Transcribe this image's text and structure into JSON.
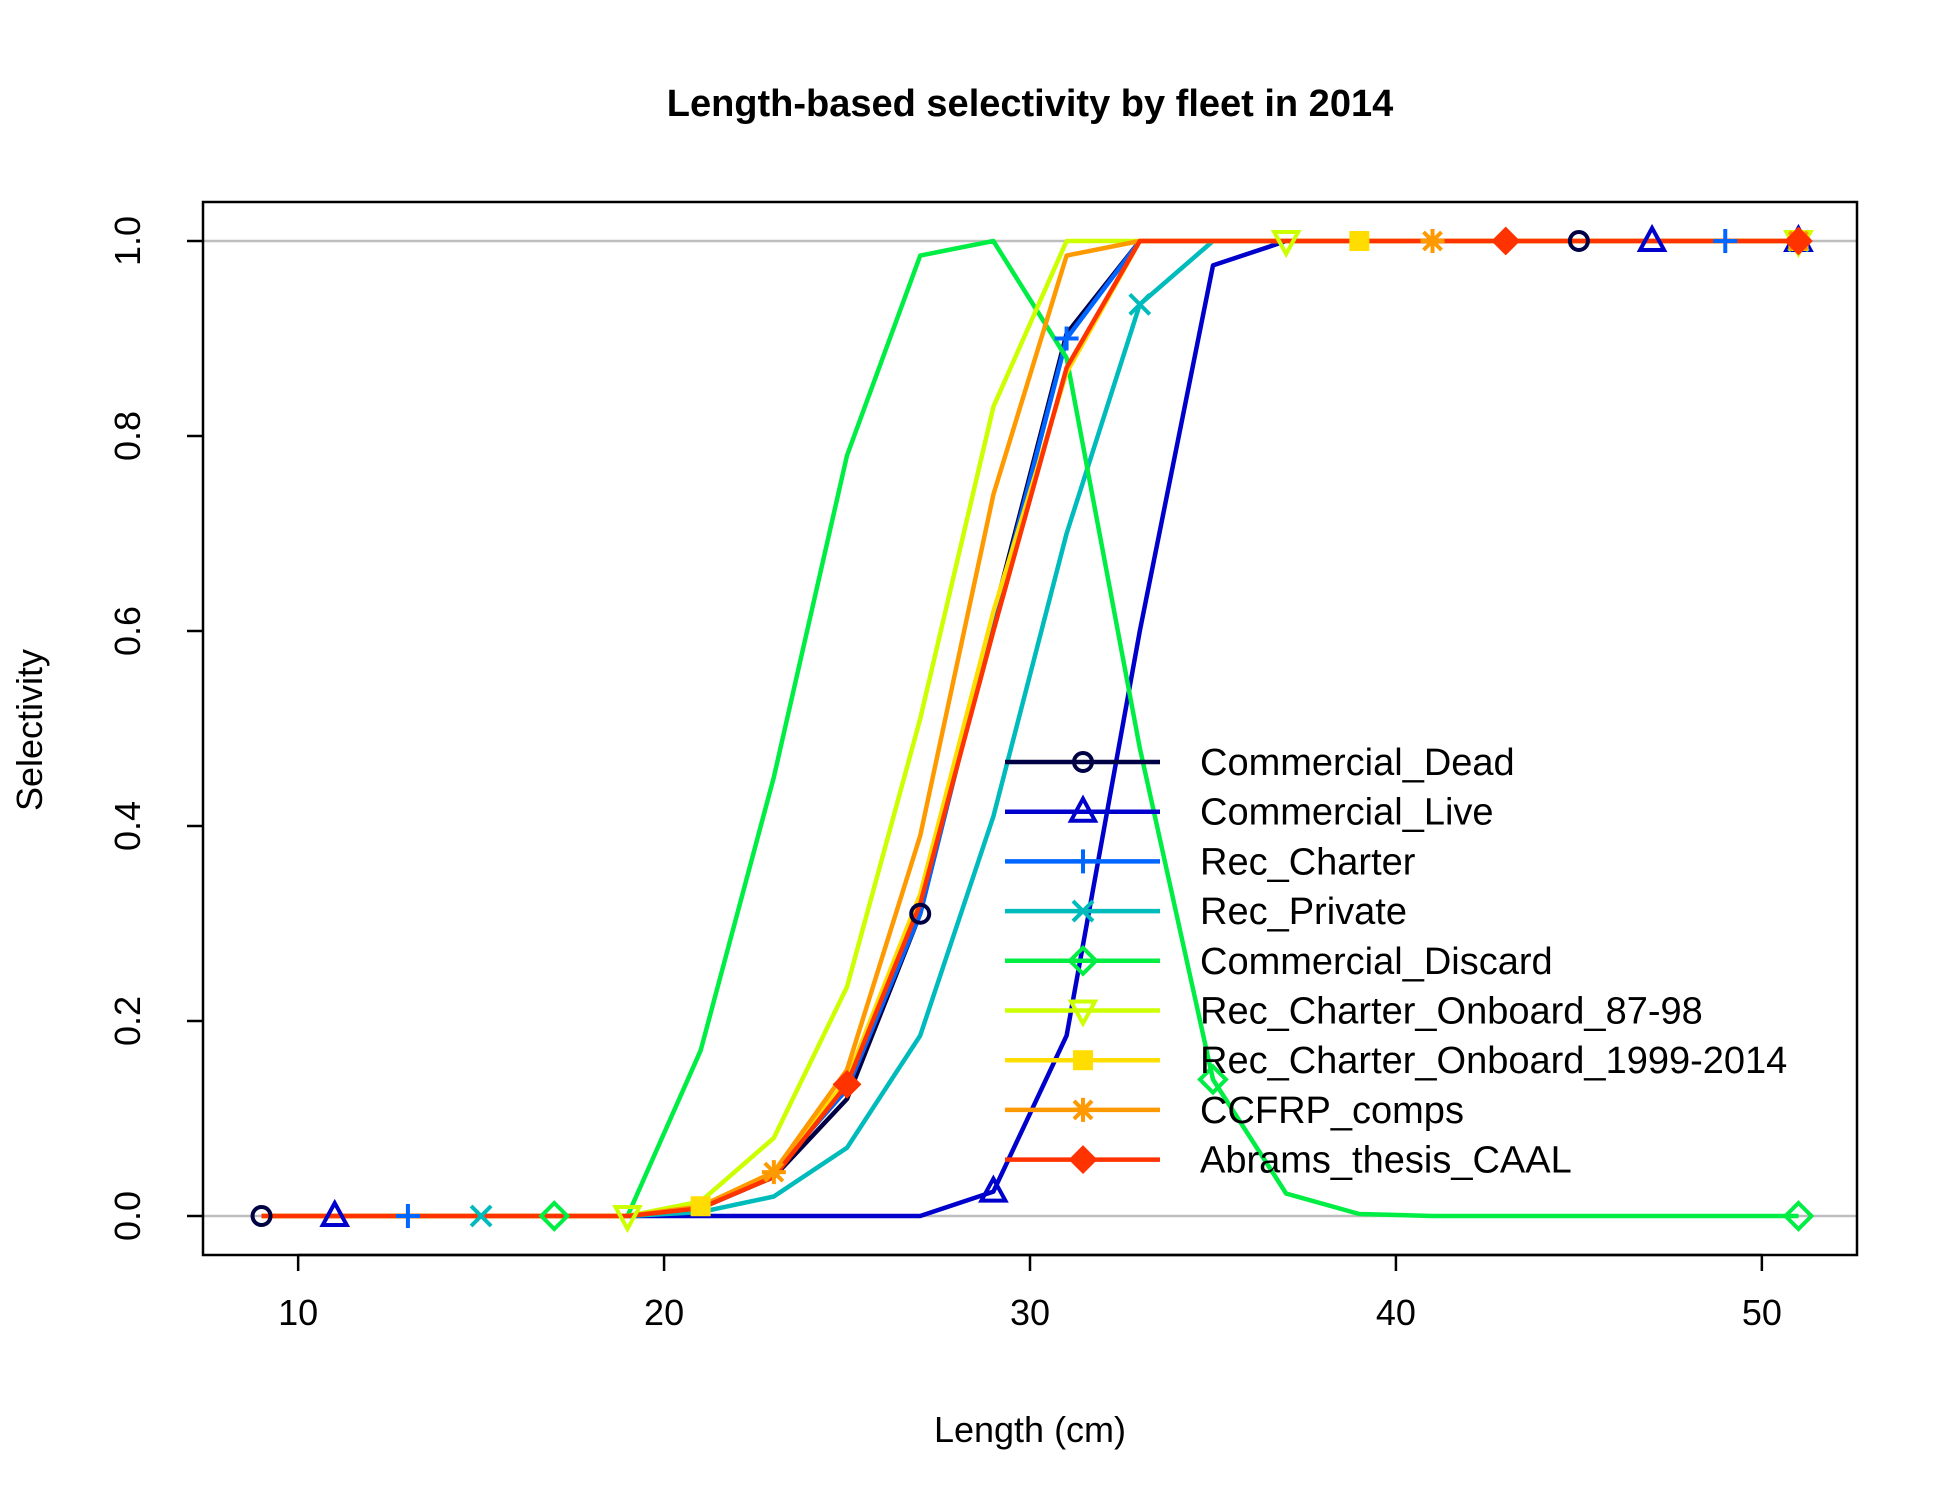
{
  "chart_data": {
    "type": "line",
    "title": "Length-based selectivity by fleet in 2014",
    "xlabel": "Length (cm)",
    "ylabel": "Selectivity",
    "xlim": [
      7.4,
      52.6
    ],
    "ylim": [
      -0.04,
      1.04
    ],
    "x_ticks": [
      10,
      20,
      30,
      40,
      50
    ],
    "x_tick_labels": [
      "10",
      "20",
      "30",
      "40",
      "50"
    ],
    "y_ticks": [
      0,
      0.2,
      0.4,
      0.6,
      0.8,
      1.0
    ],
    "y_tick_labels": [
      "0.0",
      "0.2",
      "0.4",
      "0.6",
      "0.8",
      "1.0"
    ],
    "reference_lines": [
      0,
      1
    ],
    "legend_position": "bottom-right",
    "x": [
      9,
      11,
      13,
      15,
      17,
      19,
      21,
      23,
      25,
      27,
      29,
      31,
      33,
      35,
      37,
      39,
      41,
      43,
      45,
      47,
      49,
      51
    ],
    "series": [
      {
        "name": "Commercial_Dead",
        "color": "#000044",
        "marker": "circle",
        "values": [
          0,
          0,
          0,
          0,
          0,
          0,
          0.008,
          0.04,
          0.12,
          0.31,
          0.615,
          0.905,
          1,
          1,
          1,
          1,
          1,
          1,
          1,
          1,
          1,
          1
        ]
      },
      {
        "name": "Commercial_Live",
        "color": "#0000CC",
        "marker": "triangle",
        "values": [
          0,
          0,
          0,
          0,
          0,
          0,
          0,
          0,
          0,
          0,
          0.025,
          0.185,
          0.6,
          0.975,
          1,
          1,
          1,
          1,
          1,
          1,
          1,
          1
        ]
      },
      {
        "name": "Rec_Charter",
        "color": "#0066FF",
        "marker": "plus",
        "values": [
          0,
          0,
          0,
          0,
          0,
          0,
          0.008,
          0.045,
          0.13,
          0.31,
          0.61,
          0.9,
          1,
          1,
          1,
          1,
          1,
          1,
          1,
          1,
          1,
          1
        ]
      },
      {
        "name": "Rec_Private",
        "color": "#00BBBB",
        "marker": "cross",
        "values": [
          0,
          0,
          0,
          0,
          0,
          0,
          0.004,
          0.02,
          0.07,
          0.185,
          0.41,
          0.7,
          0.935,
          1,
          1,
          1,
          1,
          1,
          1,
          1,
          1,
          1
        ]
      },
      {
        "name": "Commercial_Discard",
        "color": "#00EE44",
        "marker": "diamond",
        "values": [
          0,
          0,
          0,
          0,
          0,
          0,
          0.17,
          0.45,
          0.78,
          0.985,
          1,
          0.88,
          0.48,
          0.14,
          0.023,
          0.002,
          0,
          0,
          0,
          0,
          0,
          0
        ]
      },
      {
        "name": "Rec_Charter_Onboard_87-98",
        "color": "#CCFF00",
        "marker": "triangle-down",
        "values": [
          0,
          0,
          0,
          0,
          0,
          0,
          0.015,
          0.08,
          0.235,
          0.51,
          0.83,
          1,
          1,
          1,
          1,
          1,
          1,
          1,
          1,
          1,
          1,
          1
        ]
      },
      {
        "name": "Rec_Charter_Onboard_1999-2014",
        "color": "#FFDD00",
        "marker": "square",
        "values": [
          0,
          0,
          0,
          0,
          0,
          0,
          0.01,
          0.045,
          0.14,
          0.33,
          0.62,
          0.865,
          1,
          1,
          1,
          1,
          1,
          1,
          1,
          1,
          1,
          1
        ]
      },
      {
        "name": "CCFRP_comps",
        "color": "#FF9900",
        "marker": "asterisk",
        "values": [
          0,
          0,
          0,
          0,
          0,
          0,
          0.01,
          0.045,
          0.15,
          0.39,
          0.74,
          0.985,
          1,
          1,
          1,
          1,
          1,
          1,
          1,
          1,
          1,
          1
        ]
      },
      {
        "name": "Abrams_thesis_CAAL",
        "color": "#FF3300",
        "marker": "diamond-filled",
        "values": [
          0,
          0,
          0,
          0,
          0,
          0,
          0.008,
          0.04,
          0.135,
          0.32,
          0.6,
          0.87,
          1,
          1,
          1,
          1,
          1,
          1,
          1,
          1,
          1,
          1
        ]
      }
    ]
  }
}
